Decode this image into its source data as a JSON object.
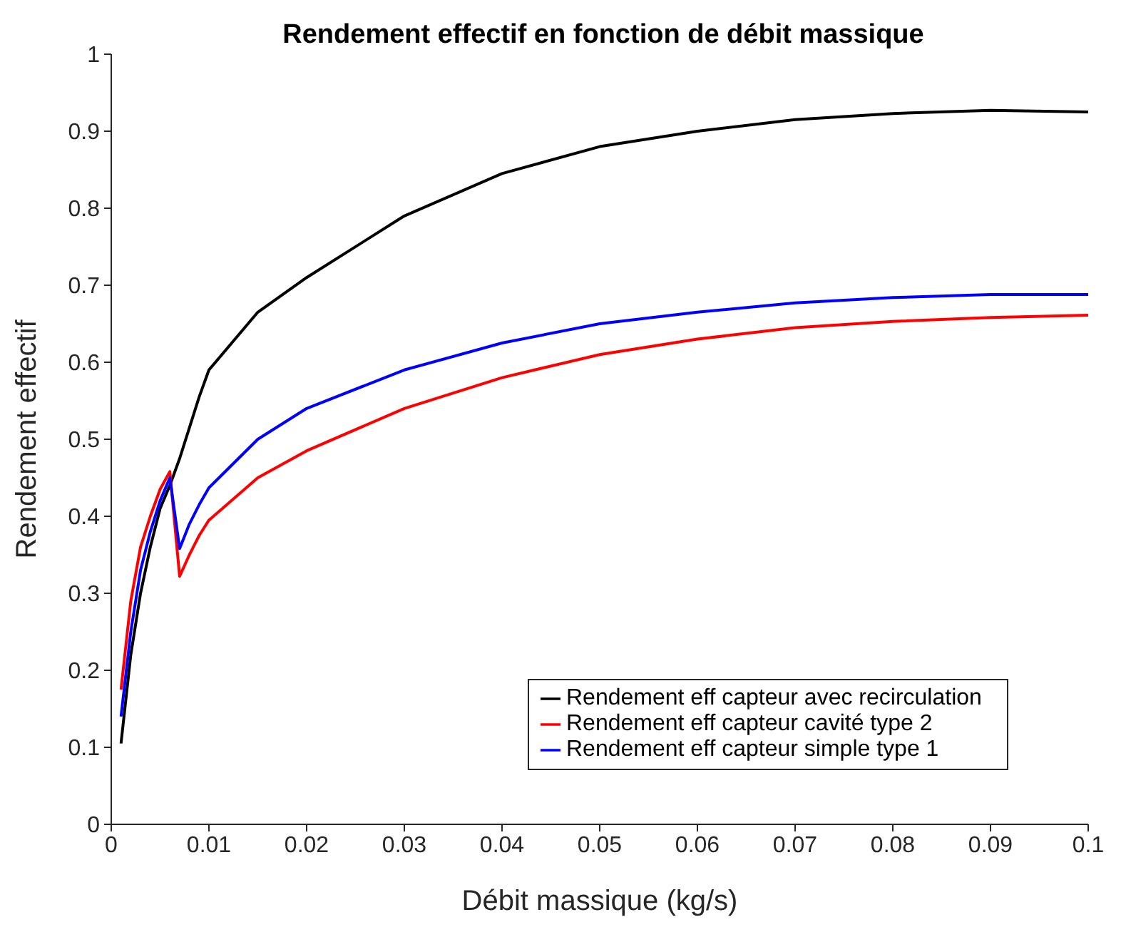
{
  "chart_data": {
    "type": "line",
    "title": "Rendement effectif en fonction de débit massique",
    "xlabel": "Débit massique (kg/s)",
    "ylabel": "Rendement effectif",
    "xlim": [
      0,
      0.1
    ],
    "xticks": [
      0,
      0.01,
      0.02,
      0.03,
      0.04,
      0.05,
      0.06,
      0.07,
      0.08,
      0.09,
      0.1
    ],
    "ylim": [
      0,
      1
    ],
    "yticks": [
      0,
      0.1,
      0.2,
      0.3,
      0.4,
      0.5,
      0.6,
      0.7,
      0.8,
      0.9,
      1
    ],
    "grid": false,
    "legend": "bottom right",
    "marker": "none",
    "line_style": "solid",
    "series": [
      {
        "name": "Rendement eff capteur avec recirculation",
        "color": "#000000",
        "x": [
          0.001,
          0.002,
          0.003,
          0.004,
          0.005,
          0.006,
          0.007,
          0.008,
          0.009,
          0.01,
          0.015,
          0.02,
          0.03,
          0.04,
          0.05,
          0.06,
          0.07,
          0.08,
          0.09,
          0.1
        ],
        "values": [
          0.105,
          0.22,
          0.3,
          0.36,
          0.41,
          0.44,
          0.475,
          0.515,
          0.555,
          0.59,
          0.665,
          0.71,
          0.79,
          0.845,
          0.88,
          0.9,
          0.915,
          0.923,
          0.927,
          0.925
        ]
      },
      {
        "name": "Rendement eff capteur cavité type 2",
        "color": "#ff0000",
        "x": [
          0.001,
          0.002,
          0.003,
          0.004,
          0.005,
          0.006,
          0.007,
          0.008,
          0.009,
          0.01,
          0.015,
          0.02,
          0.03,
          0.04,
          0.05,
          0.06,
          0.07,
          0.08,
          0.09,
          0.1
        ],
        "values": [
          0.175,
          0.29,
          0.36,
          0.4,
          0.435,
          0.458,
          0.322,
          0.35,
          0.375,
          0.395,
          0.45,
          0.485,
          0.54,
          0.58,
          0.61,
          0.63,
          0.645,
          0.653,
          0.658,
          0.661
        ]
      },
      {
        "name": "Rendement eff capteur simple type 1",
        "color": "#0000ff",
        "x": [
          0.001,
          0.002,
          0.003,
          0.004,
          0.005,
          0.006,
          0.007,
          0.008,
          0.009,
          0.01,
          0.015,
          0.02,
          0.03,
          0.04,
          0.05,
          0.06,
          0.07,
          0.08,
          0.09,
          0.1
        ],
        "values": [
          0.14,
          0.25,
          0.33,
          0.38,
          0.42,
          0.45,
          0.358,
          0.39,
          0.415,
          0.437,
          0.5,
          0.54,
          0.59,
          0.625,
          0.65,
          0.665,
          0.677,
          0.684,
          0.688,
          0.688
        ]
      }
    ]
  }
}
